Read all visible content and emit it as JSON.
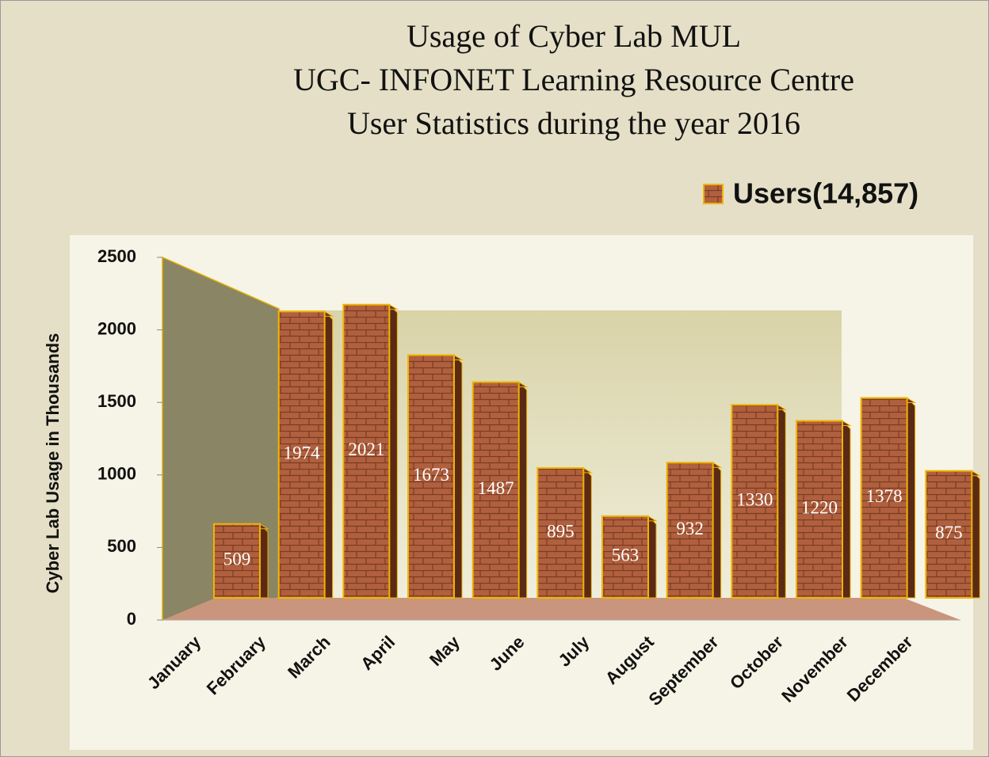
{
  "chart_data": {
    "type": "bar3d",
    "title": [
      "Usage of Cyber Lab MUL",
      "UGC- INFONET Learning Resource Centre",
      "User Statistics during the year  2016"
    ],
    "y_axis_label": "Cyber Lab Usage in Thousands",
    "series": [
      {
        "name": "Users(14,857)",
        "color": "#b0603e",
        "values": [
          509,
          1974,
          2021,
          1673,
          1487,
          895,
          563,
          932,
          1330,
          1220,
          1378,
          875
        ]
      }
    ],
    "categories": [
      "January",
      "February",
      "March",
      "April",
      "May",
      "June",
      "July",
      "August",
      "September",
      "October",
      "November",
      "December"
    ],
    "ylim": [
      0,
      2500
    ],
    "yticks": [
      0,
      500,
      1000,
      1500,
      2000,
      2500
    ],
    "legend": "top-right"
  }
}
